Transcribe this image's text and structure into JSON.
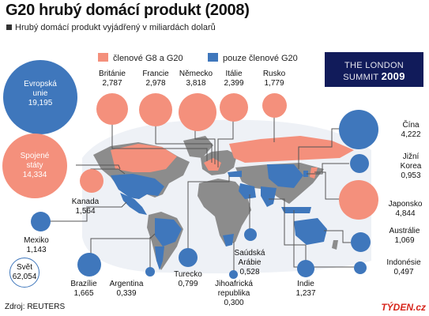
{
  "title": "G20 hrubý domácí produkt (2008)",
  "subtitle": "Hrubý domácí produkt vyjádřený v miliardách dolarů",
  "legend": {
    "g8_label": "členové G8 a G20",
    "g20_label": "pouze členové G20",
    "g8_color": "#f4907c",
    "g20_color": "#3f77bc"
  },
  "badge": {
    "line1": "THE LONDON",
    "line2_word": "SUMMIT",
    "line2_year": "2009"
  },
  "countries": {
    "eu": {
      "name_l1": "Evropská",
      "name_l2": "unie",
      "value": "19,195"
    },
    "usa": {
      "name_l1": "Spojené",
      "name_l2": "státy",
      "value": "14,334"
    },
    "britanie": {
      "name": "Británie",
      "value": "2,787"
    },
    "francie": {
      "name": "Francie",
      "value": "2,978"
    },
    "nemecko": {
      "name": "Německo",
      "value": "3,818"
    },
    "italie": {
      "name": "Itálie",
      "value": "2,399"
    },
    "rusko": {
      "name": "Rusko",
      "value": "1,779"
    },
    "kanada": {
      "name": "Kanada",
      "value": "1,564"
    },
    "japonsko": {
      "name": "Japonsko",
      "value": "4,844"
    },
    "cina": {
      "name": "Čína",
      "value": "4,222"
    },
    "korea": {
      "name_l1": "Jižní",
      "name_l2": "Korea",
      "value": "0,953"
    },
    "australie": {
      "name": "Austrálie",
      "value": "1,069"
    },
    "indonesie": {
      "name": "Indonésie",
      "value": "0,497"
    },
    "mexiko": {
      "name": "Mexiko",
      "value": "1,143"
    },
    "brazilie": {
      "name": "Brazílie",
      "value": "1,665"
    },
    "argentina": {
      "name": "Argentina",
      "value": "0,339"
    },
    "turecko": {
      "name": "Turecko",
      "value": "0,799"
    },
    "jar": {
      "name_l1": "Jihoafrická",
      "name_l2": "republika",
      "value": "0,300"
    },
    "saudska": {
      "name_l1": "Saúdská",
      "name_l2": "Arábie",
      "value": "0,528"
    },
    "indie": {
      "name": "Indie",
      "value": "1,237"
    }
  },
  "world": {
    "name": "Svět",
    "value": "62,054"
  },
  "source": "Zdroj: REUTERS",
  "brand": "TÝDEN.cz"
}
